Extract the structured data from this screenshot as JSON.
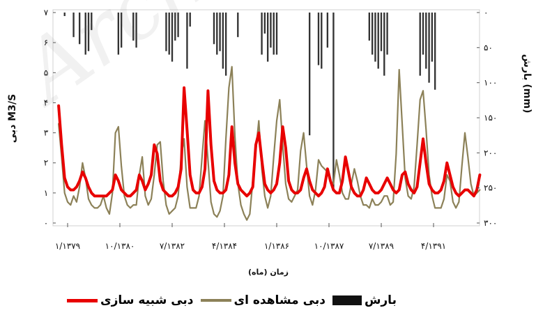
{
  "watermark": "Archive",
  "chart_data": {
    "type": "bar+line",
    "ylabel_left": "دبی M3/S",
    "ylabel_right": "بارش (mm)",
    "xlabel": "زمان (ماه)",
    "ylim_left": [
      0,
      7
    ],
    "ylim_right": [
      300,
      0
    ],
    "yticks_left": [
      "۰",
      "۱",
      "۲",
      "۳",
      "۴",
      "۵",
      "۶",
      "۷"
    ],
    "yticks_right": [
      "۰",
      "۵۰",
      "۱۰۰",
      "۱۵۰",
      "۲۰۰",
      "۲۵۰",
      "۳۰۰"
    ],
    "x_months": 140,
    "xtick_labels": [
      "۱/۱۳۷۹",
      "۱۰/۱۳۸۰",
      "۷/۱۳۸۲",
      "۴/۱۳۸۴",
      "۱/۱۳۸۶",
      "۱۰/۱۳۸۷",
      "۷/۱۳۸۹",
      "۴/۱۳۹۱"
    ],
    "xtick_months": [
      3,
      24,
      45,
      66,
      87,
      108,
      129,
      150
    ],
    "grid": false,
    "series": [
      {
        "name": "بارش",
        "type": "bar",
        "axis": "right",
        "color": "#333333",
        "values": [
          0,
          0,
          5,
          0,
          0,
          35,
          0,
          45,
          0,
          60,
          55,
          25,
          0,
          0,
          0,
          0,
          0,
          0,
          0,
          0,
          60,
          50,
          0,
          0,
          0,
          40,
          50,
          0,
          0,
          0,
          0,
          0,
          0,
          0,
          0,
          0,
          55,
          60,
          70,
          40,
          35,
          0,
          0,
          80,
          20,
          0,
          0,
          0,
          0,
          0,
          0,
          0,
          45,
          60,
          55,
          80,
          90,
          0,
          0,
          0,
          35,
          0,
          0,
          0,
          0,
          0,
          0,
          0,
          60,
          30,
          70,
          50,
          60,
          60,
          0,
          0,
          0,
          0,
          0,
          0,
          0,
          0,
          0,
          0,
          175,
          0,
          0,
          75,
          80,
          0,
          50,
          0,
          250,
          0,
          0,
          0,
          0,
          0,
          0,
          0,
          0,
          0,
          0,
          0,
          40,
          60,
          70,
          80,
          55,
          90,
          60,
          0,
          0,
          0,
          0,
          0,
          0,
          0,
          0,
          0,
          0,
          90,
          60,
          80,
          100,
          70,
          110,
          0,
          0,
          0,
          0,
          0,
          0,
          0,
          0,
          0,
          0,
          0,
          0,
          0,
          0
        ]
      },
      {
        "name": "دبی مشاهده ای",
        "type": "line",
        "axis": "left",
        "color": "#8c8158",
        "values": [
          3.3,
          2.2,
          1.0,
          0.7,
          0.6,
          0.9,
          0.7,
          1.2,
          2.0,
          1.5,
          0.8,
          0.6,
          0.5,
          0.5,
          0.6,
          0.9,
          0.5,
          0.3,
          1.0,
          3.0,
          3.2,
          1.9,
          0.9,
          0.6,
          0.5,
          0.6,
          0.6,
          1.6,
          2.2,
          0.9,
          0.6,
          0.8,
          1.6,
          2.6,
          2.7,
          1.4,
          0.6,
          0.3,
          0.4,
          0.5,
          0.9,
          2.2,
          2.8,
          1.2,
          0.5,
          0.5,
          0.5,
          0.9,
          2.2,
          3.4,
          2.1,
          0.7,
          0.3,
          0.2,
          0.4,
          0.9,
          2.8,
          4.5,
          5.2,
          2.9,
          1.3,
          0.6,
          0.3,
          0.1,
          0.3,
          1.4,
          2.4,
          3.4,
          1.8,
          0.9,
          0.5,
          0.9,
          2.2,
          3.4,
          4.1,
          2.6,
          1.3,
          0.8,
          0.7,
          0.9,
          1.1,
          2.4,
          3.0,
          1.9,
          0.9,
          0.6,
          1.1,
          2.1,
          1.9,
          1.8,
          1.7,
          1.4,
          1.3,
          2.1,
          1.6,
          1.0,
          0.8,
          0.8,
          1.3,
          1.8,
          1.4,
          0.9,
          0.6,
          0.6,
          0.5,
          0.8,
          0.6,
          0.6,
          0.7,
          0.9,
          0.9,
          0.6,
          0.7,
          2.3,
          5.1,
          3.3,
          1.5,
          0.9,
          0.8,
          1.2,
          2.6,
          4.1,
          4.4,
          3.1,
          1.6,
          0.9,
          0.5,
          0.5,
          0.5,
          0.8,
          1.6,
          1.4,
          0.7,
          0.5,
          0.7,
          1.9,
          3.0,
          2.2,
          1.3,
          0.9,
          1.0,
          1.1
        ]
      },
      {
        "name": "دبی شبیه سازی",
        "type": "line",
        "axis": "left",
        "color": "#e80000",
        "values": [
          3.9,
          2.6,
          1.5,
          1.2,
          1.1,
          1.1,
          1.2,
          1.4,
          1.7,
          1.5,
          1.2,
          1.0,
          0.9,
          0.9,
          0.9,
          0.9,
          0.9,
          1.0,
          1.1,
          1.6,
          1.4,
          1.1,
          1.0,
          0.9,
          0.9,
          1.0,
          1.1,
          1.6,
          1.4,
          1.1,
          1.3,
          1.6,
          2.6,
          2.3,
          1.4,
          1.1,
          1.0,
          0.9,
          0.9,
          1.0,
          1.2,
          1.8,
          4.5,
          3.1,
          1.6,
          1.1,
          1.0,
          1.0,
          1.2,
          1.8,
          4.4,
          2.6,
          1.4,
          1.1,
          1.0,
          1.0,
          1.1,
          1.6,
          3.2,
          2.0,
          1.3,
          1.1,
          1.0,
          0.9,
          1.0,
          1.2,
          2.6,
          3.0,
          2.1,
          1.3,
          1.1,
          1.0,
          1.1,
          1.3,
          2.0,
          3.2,
          2.5,
          1.4,
          1.1,
          1.0,
          1.0,
          1.1,
          1.5,
          1.8,
          1.4,
          1.1,
          1.0,
          0.9,
          1.0,
          1.2,
          1.8,
          1.4,
          1.1,
          1.0,
          1.0,
          1.4,
          2.2,
          1.7,
          1.2,
          1.0,
          0.9,
          0.9,
          1.1,
          1.5,
          1.3,
          1.1,
          1.0,
          1.0,
          1.1,
          1.3,
          1.5,
          1.3,
          1.1,
          1.0,
          1.1,
          1.6,
          1.7,
          1.3,
          1.1,
          1.0,
          1.2,
          2.0,
          2.8,
          2.0,
          1.3,
          1.1,
          1.0,
          1.0,
          1.1,
          1.4,
          2.0,
          1.6,
          1.2,
          1.0,
          0.9,
          1.0,
          1.1,
          1.1,
          1.0,
          0.9,
          1.1,
          1.6
        ]
      }
    ]
  },
  "legend": [
    {
      "label": "دبی شبیه سازی",
      "key": "sim"
    },
    {
      "label": "دبی مشاهده ای",
      "key": "obs"
    },
    {
      "label": "بارش",
      "key": "precip"
    }
  ]
}
